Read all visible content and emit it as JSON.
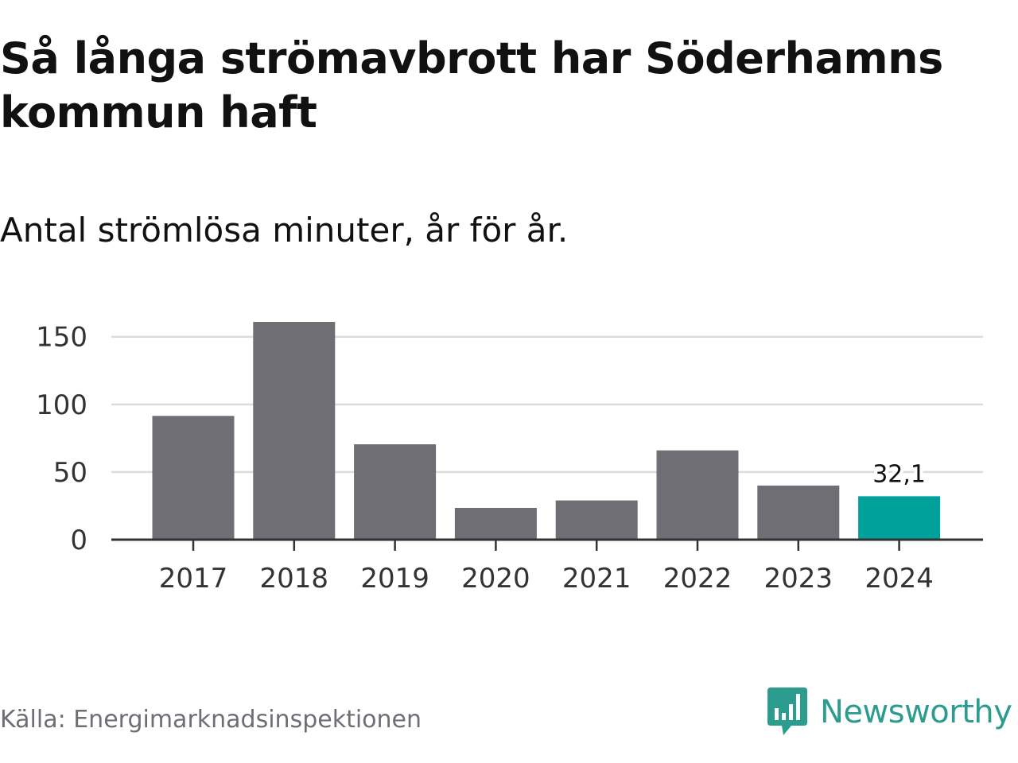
{
  "chart_data": {
    "type": "bar",
    "title": "Så långa strömavbrott har Söderhamns kommun haft",
    "subtitle": "Antal strömlösa minuter, år för år.",
    "xlabel": "",
    "ylabel": "",
    "categories": [
      "2017",
      "2018",
      "2019",
      "2020",
      "2021",
      "2022",
      "2023",
      "2024"
    ],
    "values": [
      91.5,
      161,
      70.5,
      23.5,
      29,
      66,
      40,
      32.1
    ],
    "ylim": [
      0,
      161
    ],
    "yticks": [
      0,
      50,
      100,
      150
    ],
    "ytick_labels": [
      "0",
      "50",
      "100",
      "150"
    ],
    "highlight_index": 7,
    "annotations": [
      {
        "index": 7,
        "text": "32,1"
      }
    ],
    "grid": true,
    "colors": {
      "bar": "#6f6e74",
      "highlight": "#00a19a",
      "grid": "#dcdcdc",
      "axis": "#333333"
    }
  },
  "source": "Källa: Energimarknadsinspektionen",
  "brand": {
    "name": "Newsworthy",
    "icon": "newsworthy-logo-icon",
    "color": "#2b9c8e"
  }
}
